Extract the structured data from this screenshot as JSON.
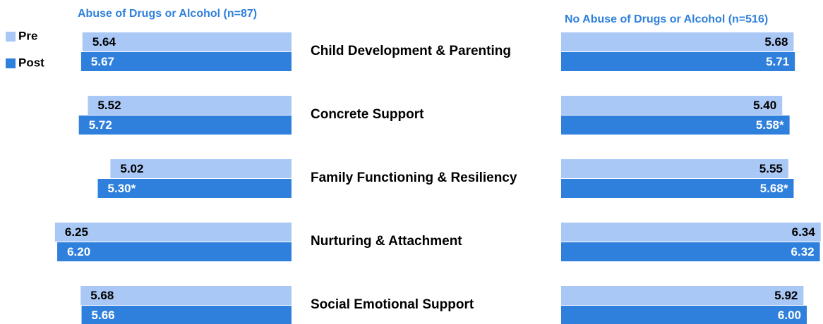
{
  "chart_data": [
    {
      "type": "bar",
      "orientation": "horizontal",
      "direction": "left",
      "title": "Abuse of Drugs or Alcohol (n=87)",
      "categories": [
        "Child Development & Parenting",
        "Concrete Support",
        "Family Functioning & Resiliency",
        "Nurturing & Attachment",
        "Social Emotional Support"
      ],
      "series": [
        {
          "name": "Pre",
          "color": "#aac8f5",
          "values": [
            5.64,
            5.52,
            5.02,
            6.25,
            5.68
          ],
          "value_labels": [
            "5.64",
            "5.52",
            "5.02",
            "6.25",
            "5.68"
          ]
        },
        {
          "name": "Post",
          "color": "#2f80dc",
          "values": [
            5.67,
            5.72,
            5.3,
            6.2,
            5.66
          ],
          "value_labels": [
            "5.67",
            "5.72",
            "5.30*",
            "6.20",
            "5.66"
          ]
        }
      ],
      "xlim": [
        1,
        7
      ]
    },
    {
      "type": "bar",
      "orientation": "horizontal",
      "direction": "right",
      "title": "No Abuse of Drugs or Alcohol (n=516)",
      "series": [
        {
          "color": "#aac8f5",
          "values": [
            5.68,
            5.4,
            5.55,
            6.34,
            5.92
          ],
          "value_labels": [
            "5.68",
            "5.40",
            "5.55",
            "6.34",
            "5.92"
          ]
        },
        {
          "color": "#2f80dc",
          "values": [
            5.71,
            5.58,
            5.68,
            6.32,
            6.0
          ],
          "value_labels": [
            "5.71",
            "5.58*",
            "5.68*",
            "6.32",
            "6.00"
          ]
        }
      ],
      "xlim": [
        0,
        7
      ]
    }
  ]
}
